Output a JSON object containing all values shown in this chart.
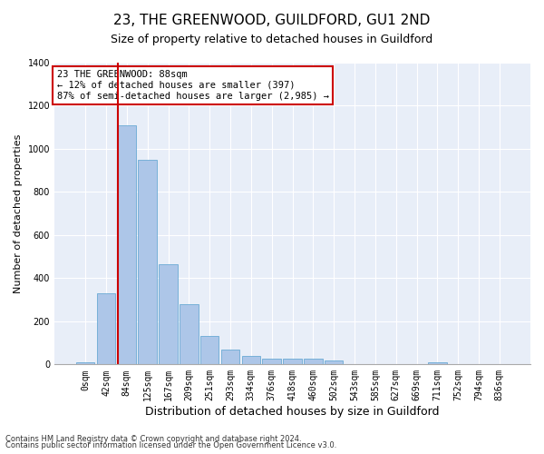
{
  "title": "23, THE GREENWOOD, GUILDFORD, GU1 2ND",
  "subtitle": "Size of property relative to detached houses in Guildford",
  "xlabel": "Distribution of detached houses by size in Guildford",
  "ylabel": "Number of detached properties",
  "footnote1": "Contains HM Land Registry data © Crown copyright and database right 2024.",
  "footnote2": "Contains public sector information licensed under the Open Government Licence v3.0.",
  "bar_color": "#adc6e8",
  "bar_edge_color": "#6aaad4",
  "fig_bg_color": "#ffffff",
  "ax_bg_color": "#e8eef8",
  "grid_color": "#ffffff",
  "annotation_box_edgecolor": "#cc0000",
  "vline_color": "#cc0000",
  "categories": [
    "0sqm",
    "42sqm",
    "84sqm",
    "125sqm",
    "167sqm",
    "209sqm",
    "251sqm",
    "293sqm",
    "334sqm",
    "376sqm",
    "418sqm",
    "460sqm",
    "502sqm",
    "543sqm",
    "585sqm",
    "627sqm",
    "669sqm",
    "711sqm",
    "752sqm",
    "794sqm",
    "836sqm"
  ],
  "values": [
    10,
    330,
    1110,
    950,
    465,
    280,
    130,
    70,
    40,
    25,
    25,
    25,
    20,
    0,
    0,
    0,
    0,
    10,
    0,
    0,
    0
  ],
  "annotation_line1": "23 THE GREENWOOD: 88sqm",
  "annotation_line2": "← 12% of detached houses are smaller (397)",
  "annotation_line3": "87% of semi-detached houses are larger (2,985) →",
  "vline_bar_index": 2,
  "ylim": [
    0,
    1400
  ],
  "yticks": [
    0,
    200,
    400,
    600,
    800,
    1000,
    1200,
    1400
  ],
  "title_fontsize": 11,
  "subtitle_fontsize": 9,
  "ylabel_fontsize": 8,
  "xlabel_fontsize": 9,
  "tick_fontsize": 7,
  "annotation_fontsize": 7.5,
  "footnote_fontsize": 6
}
